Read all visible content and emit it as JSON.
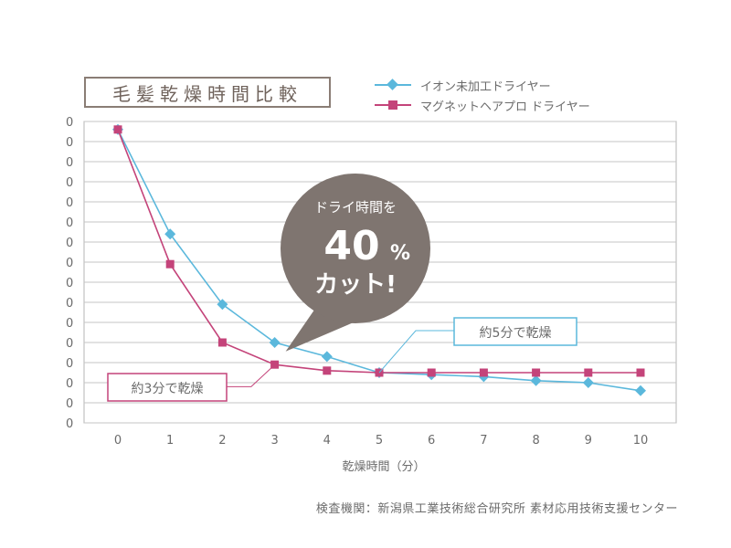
{
  "chart_data": {
    "type": "line",
    "title": "毛髪乾燥時間比較",
    "xlabel": "乾燥時間（分）",
    "ylabel": "",
    "x": [
      0,
      1,
      2,
      3,
      4,
      5,
      6,
      7,
      8,
      9,
      10
    ],
    "y_tick_labels": [
      "0",
      "0",
      "0",
      "0",
      "0",
      "0",
      "0",
      "0",
      "0",
      "0",
      "0",
      "0",
      "0",
      "0",
      "0",
      "0"
    ],
    "ylim": [
      0,
      15
    ],
    "grid": true,
    "legend_position": "top-right",
    "series": [
      {
        "name": "イオン未加工ドライヤー",
        "color": "#5bb8dc",
        "marker": "diamond",
        "values": [
          14.6,
          9.4,
          5.9,
          4.0,
          3.3,
          2.5,
          2.4,
          2.3,
          2.1,
          2.0,
          1.6
        ]
      },
      {
        "name": "マグネットヘアプロ ドライヤー",
        "color": "#c4447a",
        "marker": "square",
        "values": [
          14.6,
          7.9,
          4.0,
          2.9,
          2.6,
          2.5,
          2.5,
          2.5,
          2.5,
          2.5,
          2.5
        ]
      }
    ],
    "annotations": {
      "bubble_line1": "ドライ時間を",
      "bubble_line2": "40",
      "bubble_pct": "%",
      "bubble_line3": "カット!",
      "callout_pink": "約3分で乾燥",
      "callout_blue": "約5分で乾燥",
      "bubble_color": "#7f7570"
    }
  },
  "footer": {
    "source": "検査機関：新潟県工業技術総合研究所 素材応用技術支援センター"
  }
}
